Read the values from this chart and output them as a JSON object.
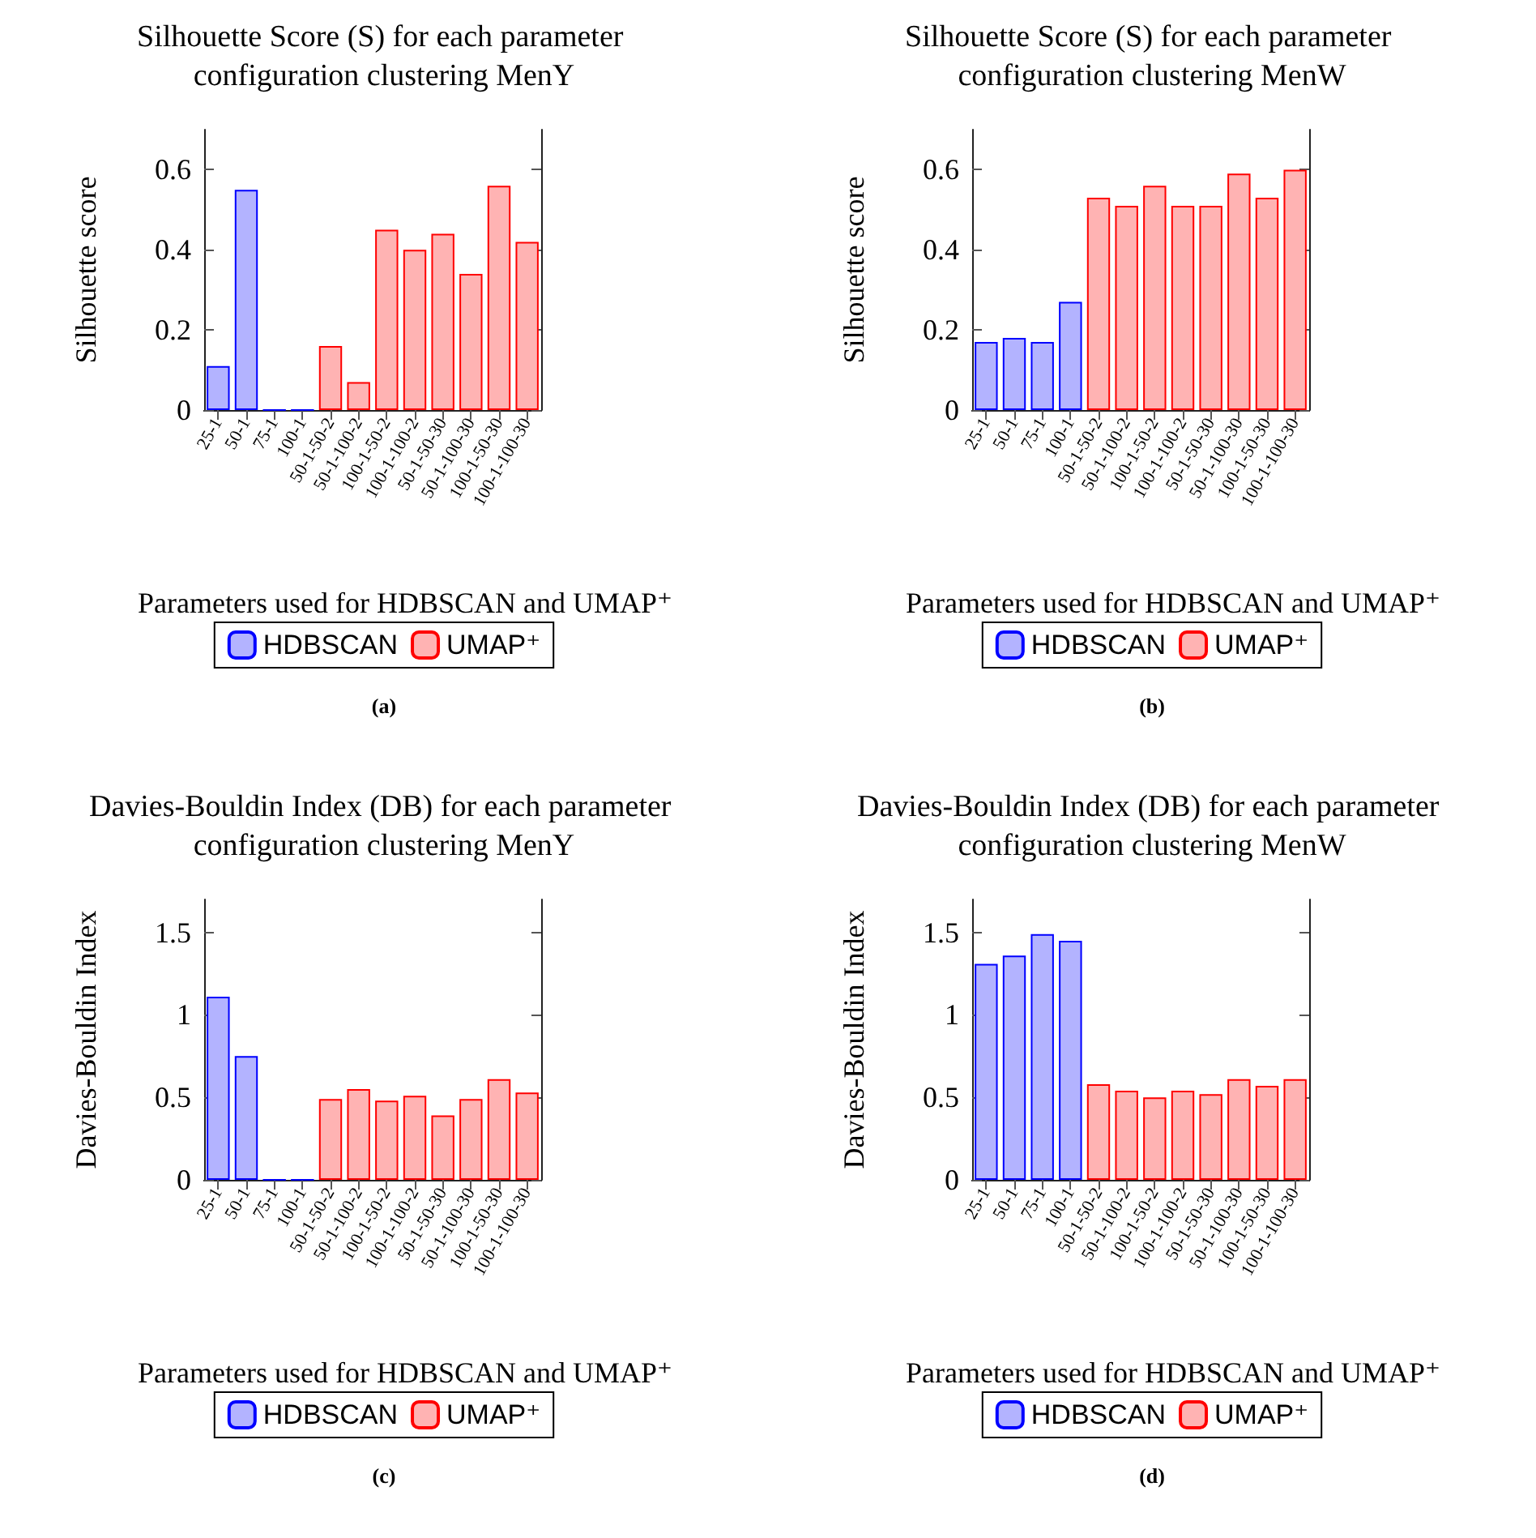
{
  "chart_data": [
    {
      "type": "bar",
      "title": "Silhouette Score (S) for each parameter configuration clustering MenY",
      "xlabel": "Parameters used for HDBSCAN and UMAP⁺",
      "ylabel": "Silhouette score",
      "categories": [
        "25-1",
        "50-1",
        "75-1",
        "100-1",
        "50-1-50-2",
        "50-1-100-2",
        "100-1-50-2",
        "100-1-100-2",
        "50-1-50-30",
        "50-1-100-30",
        "100-1-50-30",
        "100-1-100-30"
      ],
      "series": [
        {
          "name": "HDBSCAN",
          "color": "#0000ff",
          "values": [
            0.11,
            0.55,
            0,
            0,
            null,
            null,
            null,
            null,
            null,
            null,
            null,
            null
          ]
        },
        {
          "name": "UMAP⁺",
          "color": "#ff0000",
          "values": [
            null,
            null,
            null,
            null,
            0.16,
            0.07,
            0.45,
            0.4,
            0.44,
            0.34,
            0.56,
            0.42
          ]
        }
      ],
      "ylim": [
        0,
        0.7
      ],
      "yticks": [
        0,
        0.2,
        0.4,
        0.6
      ],
      "grid": false,
      "legend": "bottom",
      "annotations": [
        "(a)"
      ]
    },
    {
      "type": "bar",
      "title": "Silhouette Score (S) for each parameter configuration clustering MenW",
      "xlabel": "Parameters used for HDBSCAN and UMAP⁺",
      "ylabel": "Silhouette score",
      "categories": [
        "25-1",
        "50-1",
        "75-1",
        "100-1",
        "50-1-50-2",
        "50-1-100-2",
        "100-1-50-2",
        "100-1-100-2",
        "50-1-50-30",
        "50-1-100-30",
        "100-1-50-30",
        "100-1-100-30"
      ],
      "series": [
        {
          "name": "HDBSCAN",
          "color": "#0000ff",
          "values": [
            0.17,
            0.18,
            0.17,
            0.27,
            null,
            null,
            null,
            null,
            null,
            null,
            null,
            null
          ]
        },
        {
          "name": "UMAP⁺",
          "color": "#ff0000",
          "values": [
            null,
            null,
            null,
            null,
            0.53,
            0.51,
            0.56,
            0.51,
            0.51,
            0.59,
            0.53,
            0.6
          ]
        }
      ],
      "ylim": [
        0,
        0.7
      ],
      "yticks": [
        0,
        0.2,
        0.4,
        0.6
      ],
      "grid": false,
      "legend": "bottom",
      "annotations": [
        "(b)"
      ]
    },
    {
      "type": "bar",
      "title": "Davies-Bouldin Index (DB) for each parameter configuration clustering MenY",
      "xlabel": "Parameters used for HDBSCAN and UMAP⁺",
      "ylabel": "Davies-Bouldin Index",
      "categories": [
        "25-1",
        "50-1",
        "75-1",
        "100-1",
        "50-1-50-2",
        "50-1-100-2",
        "100-1-50-2",
        "100-1-100-2",
        "50-1-50-30",
        "50-1-100-30",
        "100-1-50-30",
        "100-1-100-30"
      ],
      "series": [
        {
          "name": "HDBSCAN",
          "color": "#0000ff",
          "values": [
            1.11,
            0.75,
            0,
            0,
            null,
            null,
            null,
            null,
            null,
            null,
            null,
            null
          ]
        },
        {
          "name": "UMAP⁺",
          "color": "#ff0000",
          "values": [
            null,
            null,
            null,
            null,
            0.49,
            0.55,
            0.48,
            0.51,
            0.39,
            0.49,
            0.61,
            0.53
          ]
        }
      ],
      "ylim": [
        0,
        1.7
      ],
      "yticks": [
        0,
        0.5,
        1,
        1.5
      ],
      "grid": false,
      "legend": "bottom",
      "annotations": [
        "(c)"
      ]
    },
    {
      "type": "bar",
      "title": "Davies-Bouldin Index (DB) for each parameter configuration clustering MenW",
      "xlabel": "Parameters used for HDBSCAN and UMAP⁺",
      "ylabel": "Davies-Bouldin Index",
      "categories": [
        "25-1",
        "50-1",
        "75-1",
        "100-1",
        "50-1-50-2",
        "50-1-100-2",
        "100-1-50-2",
        "100-1-100-2",
        "50-1-50-30",
        "50-1-100-30",
        "100-1-50-30",
        "100-1-100-30"
      ],
      "series": [
        {
          "name": "HDBSCAN",
          "color": "#0000ff",
          "values": [
            1.31,
            1.36,
            1.49,
            1.45,
            null,
            null,
            null,
            null,
            null,
            null,
            null,
            null
          ]
        },
        {
          "name": "UMAP⁺",
          "color": "#ff0000",
          "values": [
            null,
            null,
            null,
            null,
            0.58,
            0.54,
            0.5,
            0.54,
            0.52,
            0.61,
            0.57,
            0.61
          ]
        }
      ],
      "ylim": [
        0,
        1.7
      ],
      "yticks": [
        0,
        0.5,
        1,
        1.5
      ],
      "grid": false,
      "legend": "bottom",
      "annotations": [
        "(d)"
      ]
    }
  ]
}
